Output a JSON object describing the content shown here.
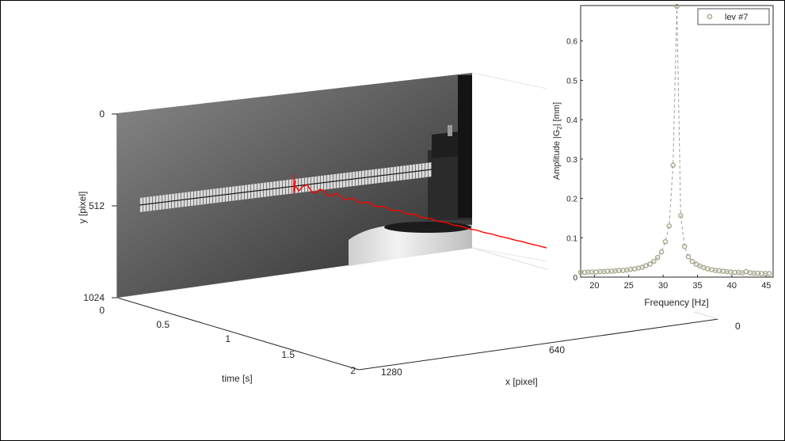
{
  "figure": {
    "y_axis": {
      "label": "y [pixel]",
      "ticks": [
        "0",
        "512",
        "1024"
      ]
    },
    "time_axis": {
      "label": "time [s]",
      "ticks": [
        "0",
        "0.5",
        "1",
        "1.5",
        "2"
      ]
    },
    "x_axis": {
      "label": "x [pixel]",
      "ticks": [
        "0",
        "640",
        "1280"
      ]
    },
    "image_panel": {
      "description": "grayscale camera frame of a cantilever beam with red displacement trace"
    },
    "trace_color": "#ff0000",
    "marker_color": "#a9a78a"
  },
  "chart_data": {
    "type": "scatter",
    "xlabel": "Frequency [Hz]",
    "ylabel": "Amplitude |G",
    "ylabel_sub": "2",
    "ylabel_tail": "| [mm]",
    "xlim": [
      18,
      46
    ],
    "ylim": [
      0,
      0.69
    ],
    "xticks": [
      20,
      25,
      30,
      35,
      40,
      45
    ],
    "yticks": [
      0,
      0.1,
      0.2,
      0.3,
      0.4,
      0.5,
      0.6
    ],
    "legend_position": "top-right",
    "grid": false,
    "series": [
      {
        "name": "lev #7",
        "x": [
          18,
          18.56,
          19.12,
          19.68,
          20.24,
          20.8,
          21.36,
          21.92,
          22.48,
          23.04,
          23.6,
          24.16,
          24.72,
          25.28,
          25.84,
          26.4,
          26.96,
          27.52,
          28.08,
          28.64,
          29.2,
          29.76,
          30.32,
          30.88,
          31.44,
          32,
          32.56,
          33.12,
          33.68,
          34.24,
          34.8,
          35.36,
          35.92,
          36.48,
          37.04,
          37.6,
          38.16,
          38.72,
          39.28,
          39.84,
          40.4,
          40.96,
          41.52,
          42.08,
          42.64,
          43.2,
          43.76,
          44.32,
          44.88,
          45.44
        ],
        "y": [
          0.012,
          0.012,
          0.013,
          0.013,
          0.013,
          0.014,
          0.014,
          0.015,
          0.015,
          0.016,
          0.017,
          0.017,
          0.018,
          0.02,
          0.021,
          0.023,
          0.025,
          0.029,
          0.033,
          0.04,
          0.05,
          0.064,
          0.09,
          0.13,
          0.284,
          0.688,
          0.156,
          0.078,
          0.052,
          0.04,
          0.033,
          0.028,
          0.024,
          0.021,
          0.019,
          0.017,
          0.016,
          0.015,
          0.014,
          0.013,
          0.012,
          0.012,
          0.011,
          0.014,
          0.011,
          0.01,
          0.01,
          0.009,
          0.009,
          0.009
        ]
      }
    ]
  }
}
